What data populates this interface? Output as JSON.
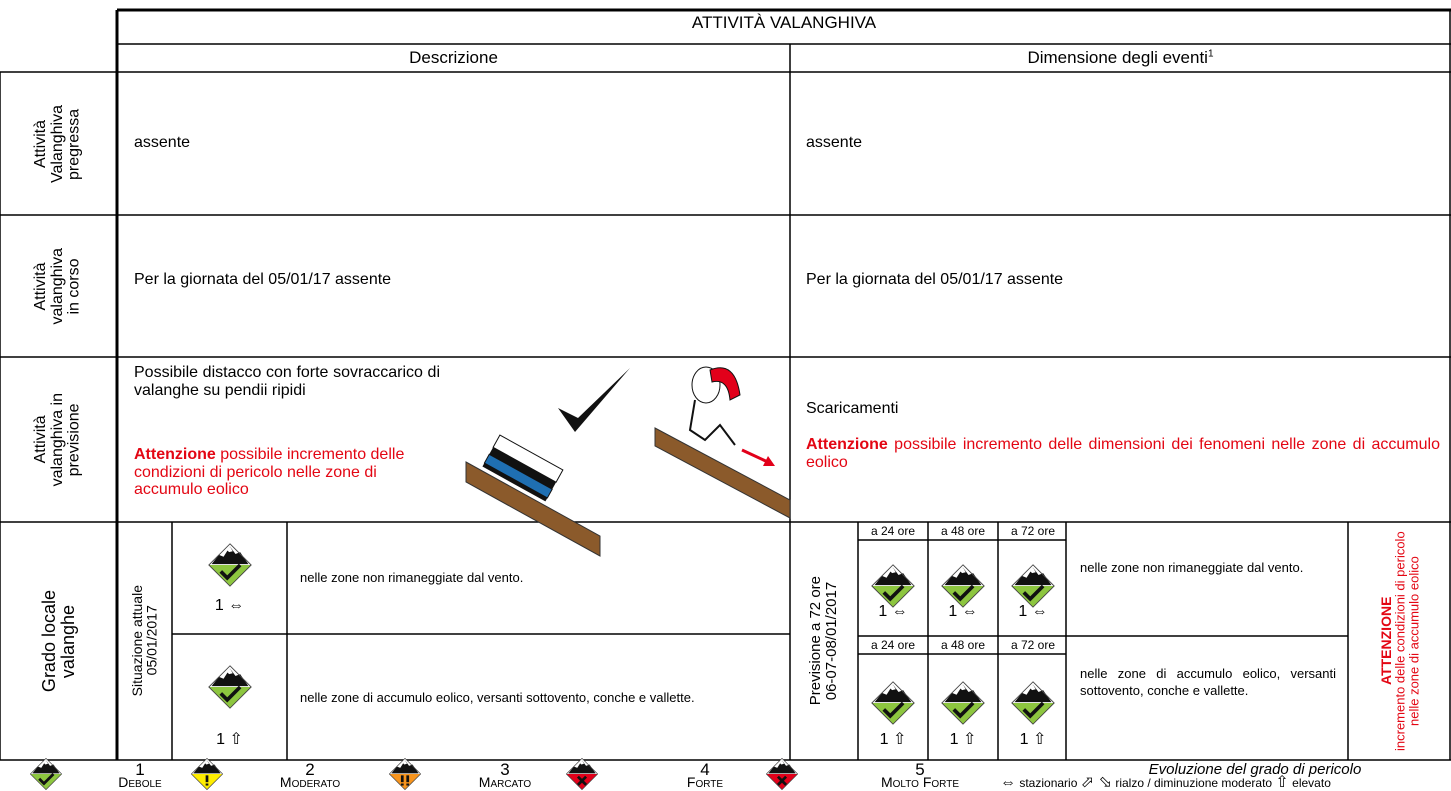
{
  "header": {
    "title": "ATTIVITÀ VALANGHIVA",
    "col_description": "Descrizione",
    "col_size": "Dimensione degli eventi",
    "col_size_note": "1"
  },
  "rows": [
    {
      "label_lines": [
        "Attività",
        "Valanghiva",
        "pregressa"
      ],
      "description": "assente",
      "size": "assente"
    },
    {
      "label_lines": [
        "Attività",
        "valanghiva",
        "in corso"
      ],
      "description": "Per la giornata del 05/01/17 assente",
      "size": "Per la giornata del 05/01/17 assente"
    },
    {
      "label_lines": [
        "Attività",
        "valanghiva in",
        "previsione"
      ],
      "description": "Possibile distacco con forte sovraccarico di valanghe su pendii ripidi",
      "description_warning_bold": "Attenzione",
      "description_warning": "possibile incremento delle condizioni di pericolo nelle zone di accumulo eolico",
      "size": "Scaricamenti",
      "size_warning_bold": "Attenzione",
      "size_warning": "possibile incremento delle dimensioni dei fenomeni nelle zone di accumulo eolico"
    }
  ],
  "grade": {
    "label_lines": [
      "Grado locale",
      "valanghe"
    ],
    "current": {
      "label": "Situazione attuale",
      "date": "05/01/2017",
      "rows": [
        {
          "level": "1",
          "trend": "⇔",
          "text": "nelle zone non rimaneggiate dal vento."
        },
        {
          "level": "1",
          "trend": "⇧",
          "text": "nelle zone di accumulo eolico, versanti sottovento, conche e vallette."
        }
      ]
    },
    "forecast": {
      "label": "Previsione a 72 ore",
      "dates": "06-07-08/01/2017",
      "horizons": [
        "a 24 ore",
        "a 48 ore",
        "a 72 ore"
      ],
      "rows": [
        {
          "levels": [
            "1",
            "1",
            "1"
          ],
          "trends": [
            "⇔",
            "⇔",
            "⇔"
          ],
          "text": "nelle zone non rimaneggiate dal vento."
        },
        {
          "levels": [
            "1",
            "1",
            "1"
          ],
          "trends": [
            "⇧",
            "⇧",
            "⇧"
          ],
          "text": "nelle zone di accumulo eolico, versanti sottovento, conche e vallette."
        }
      ],
      "warning_bold": "ATTENZIONE",
      "warning": "incremento delle condizioni di pericolo nelle zone di accumulo eolico"
    }
  },
  "legend": {
    "levels": [
      {
        "number": "1",
        "name": "Debole"
      },
      {
        "number": "2",
        "name": "Moderato"
      },
      {
        "number": "3",
        "name": "Marcato"
      },
      {
        "number": "4",
        "name": "Forte"
      },
      {
        "number": "5",
        "name": "Molto Forte"
      }
    ],
    "evolution_title": "Evoluzione del grado di pericolo",
    "evolution": [
      {
        "symbol": "⇔",
        "text": "stazionario"
      },
      {
        "symbol": "⬀ ⬂",
        "text": "rialzo / diminuzione moderato"
      },
      {
        "symbol": "⇧",
        "text": "elevato"
      }
    ]
  }
}
